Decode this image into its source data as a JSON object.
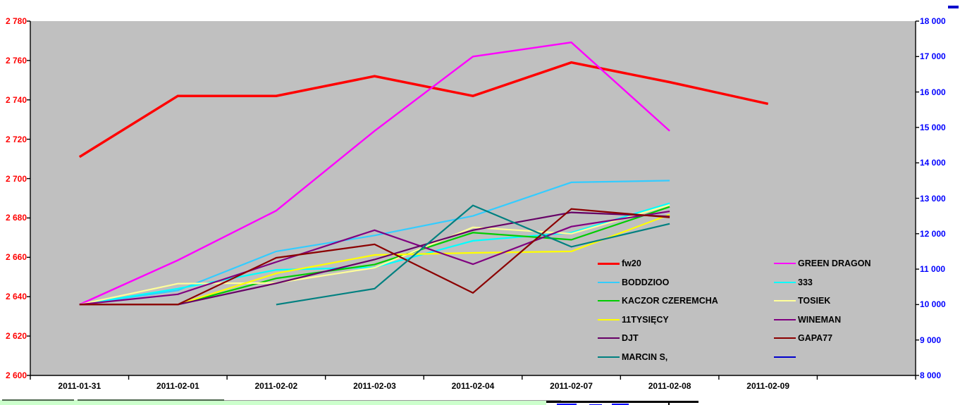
{
  "chart_data": {
    "type": "line",
    "title": "",
    "plot_background": "#c0c0c0",
    "grid": false,
    "categories": [
      "2011-01-31",
      "2011-02-01",
      "2011-02-02",
      "2011-02-03",
      "2011-02-04",
      "2011-02-07",
      "2011-02-08",
      "2011-02-09"
    ],
    "left_axis": {
      "min": 2600,
      "max": 2780,
      "step": 20,
      "color": "#ff0000",
      "labels_top_to_bottom": [
        "2 780",
        "2 760",
        "2 740",
        "2 720",
        "2 700",
        "2 680",
        "2 660",
        "2 640",
        "2 620",
        "2 600"
      ]
    },
    "right_axis": {
      "min": 8000,
      "max": 18000,
      "step": 1000,
      "color": "#0000ff",
      "labels_top_to_bottom": [
        "18 000",
        "17 000",
        "16 000",
        "15 000",
        "14 000",
        "13 000",
        "12 000",
        "11 000",
        "10 000",
        "9 000",
        "8 000"
      ]
    },
    "x_axis_label_color": "#000000",
    "series": [
      {
        "name": "fw20",
        "color": "#ff0000",
        "width": 3.5,
        "axis": "left",
        "values": [
          2711,
          2742,
          2742,
          2752,
          2742,
          2759,
          2749,
          2738
        ]
      },
      {
        "name": "GREEN DRAGON",
        "color": "#ff00ff",
        "width": 2.4,
        "axis": "right",
        "values": [
          10000,
          11250,
          12650,
          14900,
          17000,
          17400,
          14900,
          null
        ]
      },
      {
        "name": "BODDZIOO",
        "color": "#33ccff",
        "width": 2.2,
        "axis": "right",
        "values": [
          10000,
          10400,
          11500,
          11950,
          12500,
          13450,
          13500,
          null
        ]
      },
      {
        "name": "333",
        "color": "#00ffff",
        "width": 2.2,
        "axis": "right",
        "values": [
          10000,
          10450,
          10980,
          11050,
          11800,
          12030,
          12860,
          null
        ]
      },
      {
        "name": "KACZOR CZEREMCHA",
        "color": "#00cc00",
        "width": 2.2,
        "axis": "right",
        "values": [
          10000,
          10000,
          10740,
          11130,
          12030,
          11830,
          12760,
          null
        ]
      },
      {
        "name": "TOSIEK",
        "color": "#ffff99",
        "width": 2.2,
        "axis": "right",
        "values": [
          10000,
          10590,
          10610,
          11040,
          12180,
          12000,
          12810,
          null
        ]
      },
      {
        "name": "11TYSIĘCY",
        "color": "#ffff00",
        "width": 2.2,
        "axis": "right",
        "values": [
          10000,
          10000,
          10880,
          11400,
          11460,
          11500,
          12540,
          null
        ]
      },
      {
        "name": "WINEMAN",
        "color": "#800080",
        "width": 2.2,
        "axis": "right",
        "values": [
          10000,
          10290,
          11200,
          12100,
          11140,
          12200,
          12630,
          null
        ]
      },
      {
        "name": "DJT",
        "color": "#660066",
        "width": 2.2,
        "axis": "right",
        "values": [
          10000,
          10000,
          10600,
          11270,
          12100,
          12600,
          12490,
          null
        ]
      },
      {
        "name": "GAPA77",
        "color": "#8b0000",
        "width": 2.2,
        "axis": "right",
        "values": [
          10000,
          10000,
          11320,
          11700,
          10330,
          12700,
          12460,
          null
        ]
      },
      {
        "name": "MARCIN S,",
        "color": "#008080",
        "width": 2.2,
        "axis": "right",
        "values": [
          null,
          null,
          10000,
          10450,
          12800,
          11630,
          12280,
          null
        ]
      },
      {
        "name": "",
        "color": "#0000cc",
        "width": 2.2,
        "axis": "right",
        "values": [
          null,
          null,
          null,
          null,
          null,
          null,
          null,
          null
        ]
      }
    ],
    "legend": {
      "position": "inside-bottom-right",
      "columns": [
        [
          {
            "label": "fw20",
            "color": "#ff0000",
            "thick": true
          },
          {
            "label": "BODDZIOO",
            "color": "#33ccff",
            "thick": false
          },
          {
            "label": "KACZOR CZEREMCHA",
            "color": "#00cc00",
            "thick": false
          },
          {
            "label": "11TYSIĘCY",
            "color": "#ffff00",
            "thick": false
          },
          {
            "label": "DJT",
            "color": "#660066",
            "thick": false
          },
          {
            "label": "MARCIN S,",
            "color": "#008080",
            "thick": false
          }
        ],
        [
          {
            "label": "GREEN DRAGON",
            "color": "#ff00ff",
            "thick": false
          },
          {
            "label": "333",
            "color": "#00ffff",
            "thick": false
          },
          {
            "label": "TOSIEK",
            "color": "#ffff99",
            "thick": false
          },
          {
            "label": "WINEMAN",
            "color": "#800080",
            "thick": false
          },
          {
            "label": "GAPA77",
            "color": "#8b0000",
            "thick": false
          },
          {
            "label": "",
            "color": "#0000cc",
            "thick": false
          }
        ]
      ]
    }
  },
  "artifacts": {
    "top_right_dash_color": "#0000cc",
    "bottom_band_color": "#ccffcc",
    "bottom_band_edge_color": "#4d664d",
    "bottom_box_border_color": "#000000",
    "bottom_box_fill": "#ffffff",
    "bottom_blue_marks_color": "#0000ff"
  }
}
